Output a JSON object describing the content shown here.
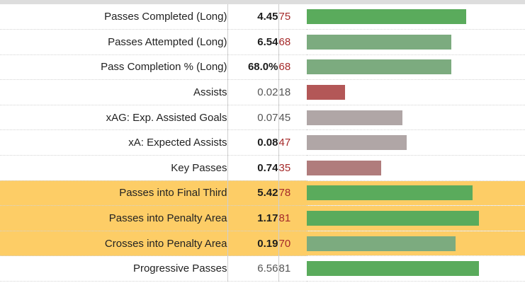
{
  "colors": {
    "highlight_row": "#fdcd66",
    "bar_high": "#5aab5c",
    "bar_mid_green": "#7cab7f",
    "bar_neutral": "#b0a6a6",
    "bar_mid_red": "#b07c7c",
    "bar_low": "#b35757",
    "pct_red": "#a52a2a",
    "pct_gray": "#555555"
  },
  "rows": [
    {
      "stat": "Passes Completed (Long)",
      "value": "4.45",
      "percentile": "75",
      "percentile_value": 75,
      "bar_color": "#5aab5c",
      "pct_color": "#a52a2a",
      "highlighted": false,
      "value_style": "bold"
    },
    {
      "stat": "Passes Attempted (Long)",
      "value": "6.54",
      "percentile": "68",
      "percentile_value": 68,
      "bar_color": "#7cab7f",
      "pct_color": "#a52a2a",
      "highlighted": false,
      "value_style": "bold"
    },
    {
      "stat": "Pass Completion % (Long)",
      "value": "68.0%",
      "percentile": "68",
      "percentile_value": 68,
      "bar_color": "#7cab7f",
      "pct_color": "#a52a2a",
      "highlighted": false,
      "value_style": "bold"
    },
    {
      "stat": "Assists",
      "value": "0.02",
      "percentile": "18",
      "percentile_value": 18,
      "bar_color": "#b35757",
      "pct_color": "#555555",
      "highlighted": false,
      "value_style": "dim"
    },
    {
      "stat": "xAG: Exp. Assisted Goals",
      "value": "0.07",
      "percentile": "45",
      "percentile_value": 45,
      "bar_color": "#b0a6a6",
      "pct_color": "#555555",
      "highlighted": false,
      "value_style": "dim"
    },
    {
      "stat": "xA: Expected Assists",
      "value": "0.08",
      "percentile": "47",
      "percentile_value": 47,
      "bar_color": "#b0a6a6",
      "pct_color": "#a52a2a",
      "highlighted": false,
      "value_style": "bold"
    },
    {
      "stat": "Key Passes",
      "value": "0.74",
      "percentile": "35",
      "percentile_value": 35,
      "bar_color": "#b07c7c",
      "pct_color": "#a52a2a",
      "highlighted": false,
      "value_style": "bold"
    },
    {
      "stat": "Passes into Final Third",
      "value": "5.42",
      "percentile": "78",
      "percentile_value": 78,
      "bar_color": "#5aab5c",
      "pct_color": "#a52a2a",
      "highlighted": true,
      "value_style": "bold"
    },
    {
      "stat": "Passes into Penalty Area",
      "value": "1.17",
      "percentile": "81",
      "percentile_value": 81,
      "bar_color": "#5aab5c",
      "pct_color": "#a52a2a",
      "highlighted": true,
      "value_style": "bold"
    },
    {
      "stat": "Crosses into Penalty Area",
      "value": "0.19",
      "percentile": "70",
      "percentile_value": 70,
      "bar_color": "#7cab7f",
      "pct_color": "#a52a2a",
      "highlighted": true,
      "value_style": "bold"
    },
    {
      "stat": "Progressive Passes",
      "value": "6.56",
      "percentile": "81",
      "percentile_value": 81,
      "bar_color": "#5aab5c",
      "pct_color": "#555555",
      "highlighted": false,
      "value_style": "dim"
    }
  ]
}
